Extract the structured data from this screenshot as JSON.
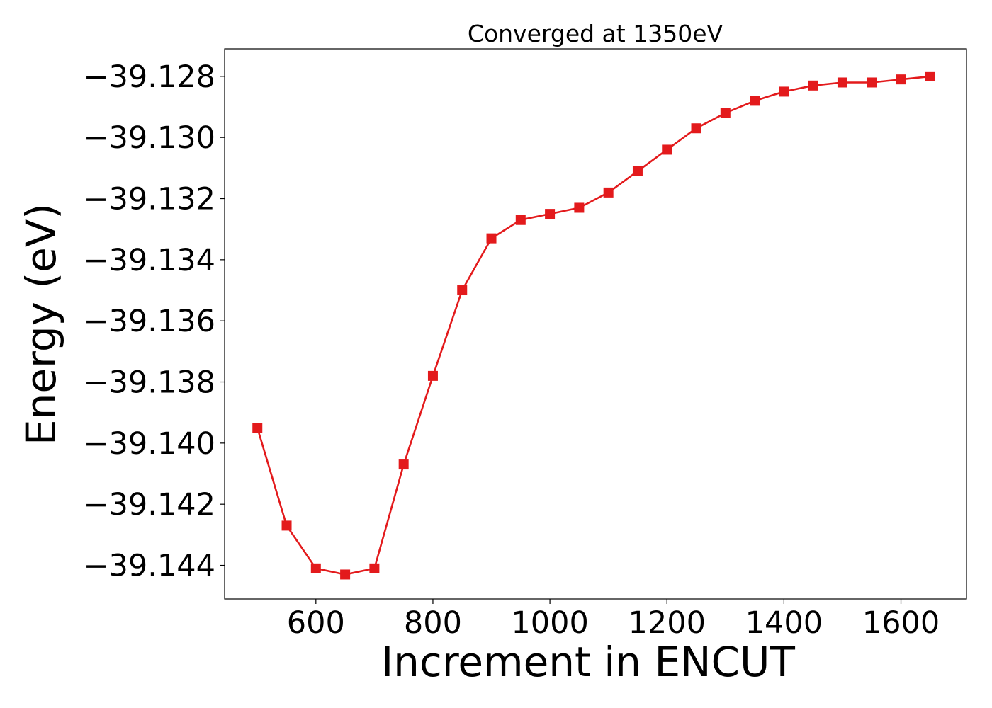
{
  "chart_data": {
    "type": "line",
    "title": "Converged at 1350eV",
    "xlabel": "Increment in ENCUT",
    "ylabel": "Energy (eV)",
    "xlim": [
      444,
      1712
    ],
    "ylim": [
      -39.1451,
      -39.1271
    ],
    "xticks": [
      600,
      800,
      1000,
      1200,
      1400,
      1600
    ],
    "xtick_labels": [
      "600",
      "800",
      "1000",
      "1200",
      "1400",
      "1600"
    ],
    "yticks": [
      -39.144,
      -39.142,
      -39.14,
      -39.138,
      -39.136,
      -39.134,
      -39.132,
      -39.13,
      -39.128
    ],
    "ytick_labels": [
      "−39.144",
      "−39.142",
      "−39.140",
      "−39.138",
      "−39.136",
      "−39.134",
      "−39.132",
      "−39.130",
      "−39.128"
    ],
    "grid": false,
    "series": [
      {
        "color": "#e31a1c",
        "marker": "square",
        "x": [
          500,
          550,
          600,
          650,
          700,
          750,
          800,
          850,
          900,
          950,
          1000,
          1050,
          1100,
          1150,
          1200,
          1250,
          1300,
          1350,
          1400,
          1450,
          1500,
          1550,
          1600,
          1650
        ],
        "y": [
          -39.1395,
          -39.1427,
          -39.1441,
          -39.1443,
          -39.1441,
          -39.1407,
          -39.1378,
          -39.135,
          -39.1333,
          -39.1327,
          -39.1325,
          -39.1323,
          -39.1318,
          -39.1311,
          -39.1304,
          -39.1297,
          -39.1292,
          -39.1288,
          -39.1285,
          -39.1283,
          -39.1282,
          -39.1282,
          -39.1281,
          -39.128
        ]
      }
    ]
  }
}
